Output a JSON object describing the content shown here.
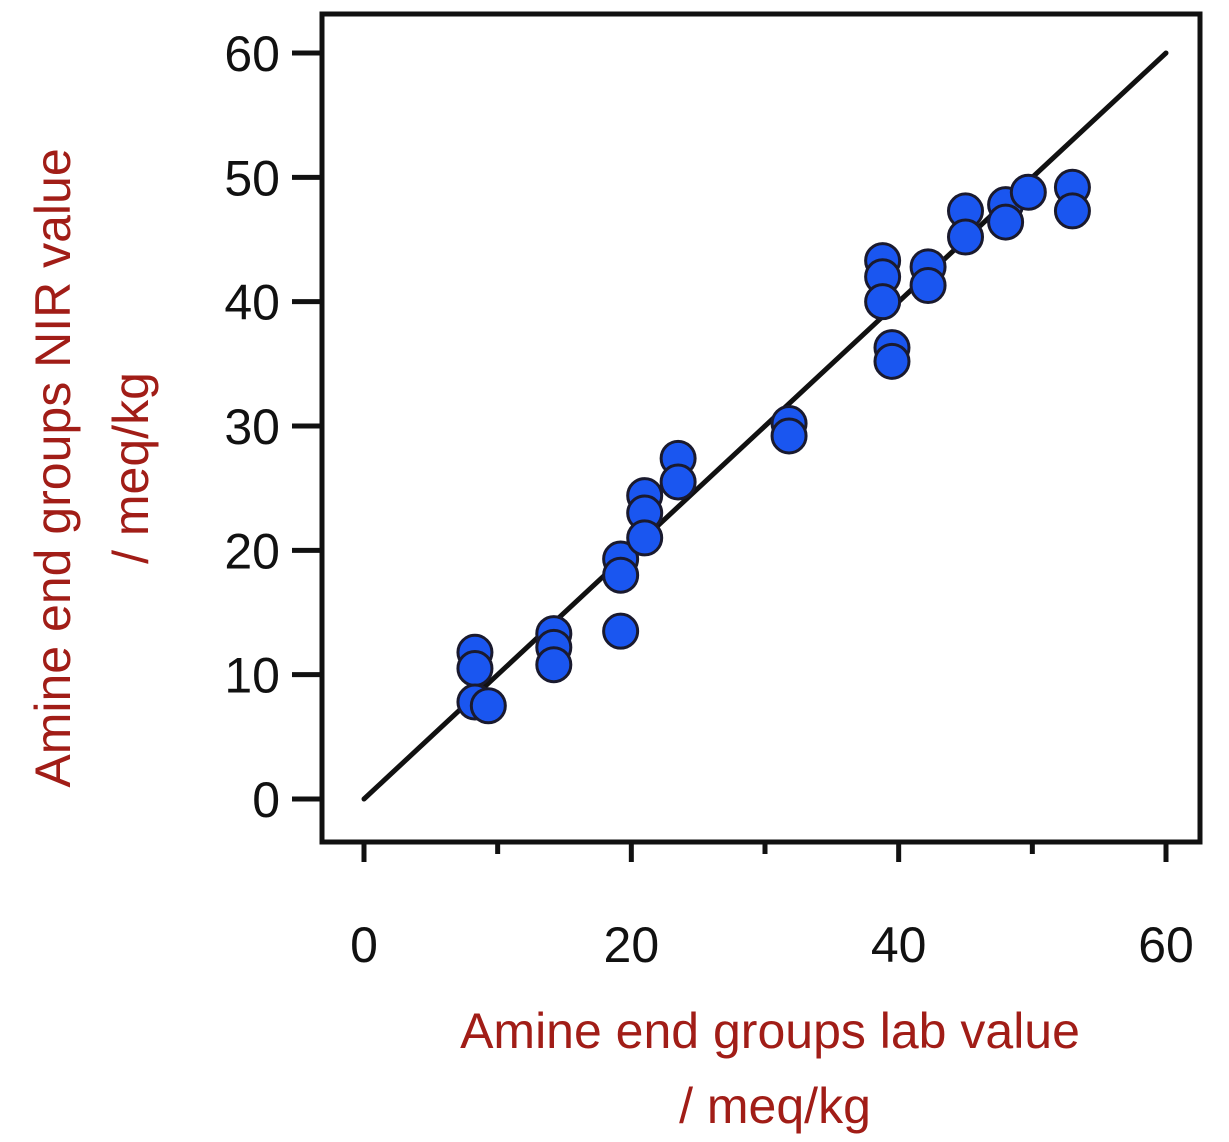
{
  "chart_data": {
    "type": "scatter",
    "xlabel": [
      "Amine end groups lab value",
      "/ meq/kg"
    ],
    "ylabel": [
      "Amine end groups NIR value",
      "/ meq/kg"
    ],
    "xlim": [
      0,
      60
    ],
    "ylim": [
      0,
      60
    ],
    "xticks": [
      0,
      20,
      40,
      60
    ],
    "xminorticks": [
      10,
      30,
      50
    ],
    "yticks": [
      0,
      10,
      20,
      30,
      40,
      50,
      60
    ],
    "grid": false,
    "legend": "none",
    "colors": {
      "marker_fill": "#1a56f0",
      "marker_edge": "#1a1a2e",
      "line": "#111111",
      "axis": "#111111",
      "label": "#a11d17"
    },
    "fit_line": {
      "from": [
        0,
        0
      ],
      "to": [
        60,
        60
      ]
    },
    "points": [
      {
        "x": 8.3,
        "y": 11.8
      },
      {
        "x": 8.3,
        "y": 10.5
      },
      {
        "x": 8.3,
        "y": 7.8
      },
      {
        "x": 9.3,
        "y": 7.5
      },
      {
        "x": 14.2,
        "y": 13.3
      },
      {
        "x": 14.2,
        "y": 12.2
      },
      {
        "x": 14.2,
        "y": 10.8
      },
      {
        "x": 19.2,
        "y": 19.3
      },
      {
        "x": 19.2,
        "y": 18.0
      },
      {
        "x": 19.2,
        "y": 13.5
      },
      {
        "x": 21.0,
        "y": 24.4
      },
      {
        "x": 21.0,
        "y": 23.0
      },
      {
        "x": 21.0,
        "y": 21.0
      },
      {
        "x": 23.5,
        "y": 27.4
      },
      {
        "x": 23.5,
        "y": 25.5
      },
      {
        "x": 31.8,
        "y": 30.2
      },
      {
        "x": 31.8,
        "y": 29.2
      },
      {
        "x": 38.8,
        "y": 43.3
      },
      {
        "x": 38.8,
        "y": 42.0
      },
      {
        "x": 38.8,
        "y": 40.0
      },
      {
        "x": 39.5,
        "y": 36.3
      },
      {
        "x": 39.5,
        "y": 35.2
      },
      {
        "x": 42.2,
        "y": 42.8
      },
      {
        "x": 42.2,
        "y": 41.3
      },
      {
        "x": 45.0,
        "y": 47.3
      },
      {
        "x": 45.0,
        "y": 45.2
      },
      {
        "x": 48.0,
        "y": 47.8
      },
      {
        "x": 48.0,
        "y": 46.4
      },
      {
        "x": 49.7,
        "y": 48.8
      },
      {
        "x": 53.0,
        "y": 49.2
      },
      {
        "x": 53.0,
        "y": 47.3
      }
    ]
  }
}
